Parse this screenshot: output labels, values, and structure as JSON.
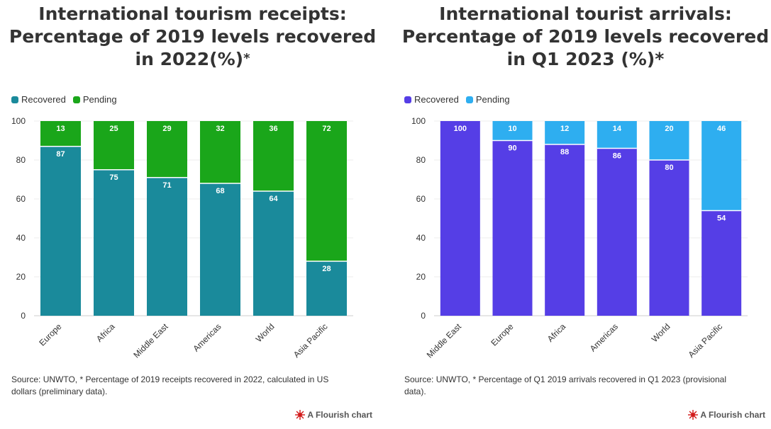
{
  "panels": [
    {
      "title_line1": "International tourism receipts:",
      "title_line2": "Percentage of 2019 levels recovered",
      "title_line3": "in 2022(%)",
      "title_mark": "*",
      "legend": [
        "Recovered",
        "Pending"
      ],
      "source": "Source: UNWTO, * Percentage of 2019 receipts recovered in 2022, calculated in US dollars (preliminary data).",
      "credit": "A Flourish chart"
    },
    {
      "title_line1": "International tourist arrivals:",
      "title_line2": "Percentage of 2019 levels recovered",
      "title_line3": "in Q1 2023 (%)*",
      "title_mark": "",
      "legend": [
        "Recovered",
        "Pending"
      ],
      "source": "Source: UNWTO, * Percentage of Q1 2019 arrivals recovered in Q1 2023 (provisional data).",
      "credit": "A Flourish chart"
    }
  ],
  "chart_data": [
    {
      "type": "bar",
      "stacked": true,
      "categories": [
        "Europe",
        "Africa",
        "Middle East",
        "Americas",
        "World",
        "Asia Pacific"
      ],
      "series": [
        {
          "name": "Recovered",
          "color": "#1a8a9b",
          "values": [
            87,
            75,
            71,
            68,
            64,
            28
          ]
        },
        {
          "name": "Pending",
          "color": "#1aa61a",
          "values": [
            13,
            25,
            29,
            32,
            36,
            72
          ]
        }
      ],
      "ylim": [
        0,
        100
      ],
      "yticks": [
        0,
        20,
        40,
        60,
        80,
        100
      ],
      "grid": true,
      "legend": "top-left",
      "title": "International tourism receipts: Percentage of 2019 levels recovered in 2022(%)*",
      "xlabel": "",
      "ylabel": ""
    },
    {
      "type": "bar",
      "stacked": true,
      "categories": [
        "Middle East",
        "Europe",
        "Africa",
        "Americas",
        "World",
        "Asia Pacific"
      ],
      "series": [
        {
          "name": "Recovered",
          "color": "#553ee6",
          "values": [
            100,
            90,
            88,
            86,
            80,
            54
          ]
        },
        {
          "name": "Pending",
          "color": "#2eaef0",
          "values": [
            0,
            10,
            12,
            14,
            20,
            46
          ]
        }
      ],
      "ylim": [
        0,
        100
      ],
      "yticks": [
        0,
        20,
        40,
        60,
        80,
        100
      ],
      "grid": true,
      "legend": "top-left",
      "title": "International tourist arrivals: Percentage of 2019 levels recovered in Q1 2023 (%)*",
      "xlabel": "",
      "ylabel": ""
    }
  ]
}
